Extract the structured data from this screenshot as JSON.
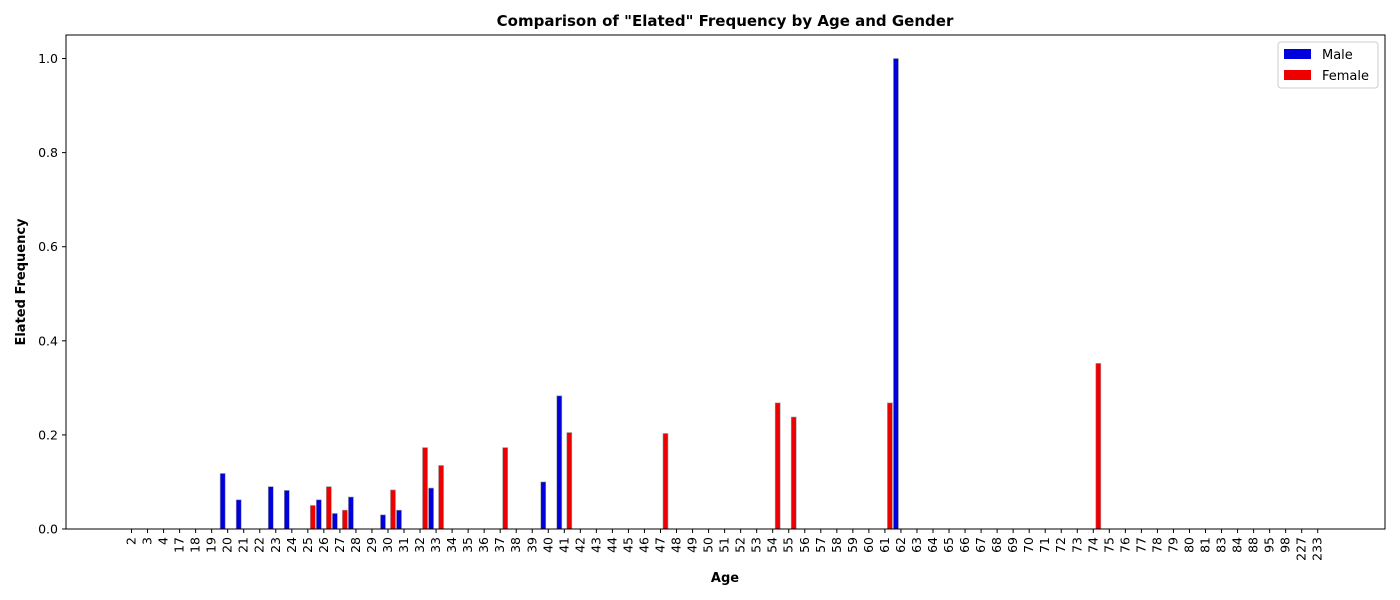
{
  "chart_data": {
    "type": "bar",
    "title": "Comparison of \"Elated\" Frequency by Age and Gender",
    "xlabel": "Age",
    "ylabel": "Elated Frequency",
    "ylim": [
      0,
      1.05
    ],
    "yticks": [
      "0.0",
      "0.2",
      "0.4",
      "0.6",
      "0.8",
      "1.0"
    ],
    "grid": false,
    "legend_position": "top-right",
    "categories": [
      "2",
      "3",
      "4",
      "17",
      "18",
      "19",
      "20",
      "21",
      "22",
      "23",
      "24",
      "25",
      "26",
      "27",
      "28",
      "29",
      "30",
      "31",
      "32",
      "33",
      "34",
      "35",
      "36",
      "37",
      "38",
      "39",
      "40",
      "41",
      "42",
      "43",
      "44",
      "45",
      "46",
      "47",
      "48",
      "49",
      "50",
      "51",
      "52",
      "53",
      "54",
      "55",
      "56",
      "57",
      "58",
      "59",
      "60",
      "61",
      "62",
      "63",
      "64",
      "65",
      "66",
      "67",
      "68",
      "69",
      "70",
      "71",
      "72",
      "73",
      "74",
      "75",
      "76",
      "77",
      "78",
      "79",
      "80",
      "81",
      "83",
      "84",
      "88",
      "95",
      "98",
      "227",
      "233"
    ],
    "series": [
      {
        "name": "Male",
        "color": "#0000dd",
        "values": [
          0,
          0,
          0,
          0,
          0,
          0,
          0.118,
          0.062,
          0,
          0.09,
          0.082,
          0,
          0.062,
          0.033,
          0.068,
          0,
          0.03,
          0.04,
          0,
          0.087,
          0,
          0,
          0,
          0,
          0,
          0,
          0.1,
          0.283,
          0,
          0,
          0,
          0,
          0,
          0,
          0,
          0,
          0,
          0,
          0,
          0,
          0,
          0,
          0,
          0,
          0,
          0,
          0,
          0,
          1.0,
          0,
          0,
          0,
          0,
          0,
          0,
          0,
          0,
          0,
          0,
          0,
          0,
          0,
          0,
          0,
          0,
          0,
          0,
          0,
          0,
          0,
          0,
          0,
          0,
          0,
          0
        ]
      },
      {
        "name": "Female",
        "color": "#ee0000",
        "values": [
          0,
          0,
          0,
          0,
          0,
          0,
          0,
          0,
          0,
          0,
          0,
          0.05,
          0.09,
          0.04,
          0,
          0,
          0.083,
          0,
          0.173,
          0.135,
          0,
          0,
          0,
          0.173,
          0,
          0,
          0,
          0.205,
          0,
          0,
          0,
          0,
          0,
          0.203,
          0,
          0,
          0,
          0,
          0,
          0,
          0.268,
          0.238,
          0,
          0,
          0,
          0,
          0,
          0.268,
          0,
          0,
          0,
          0,
          0,
          0,
          0,
          0,
          0,
          0,
          0,
          0,
          0.352,
          0,
          0,
          0,
          0,
          0,
          0,
          0,
          0,
          0,
          0,
          0,
          0,
          0,
          0
        ]
      }
    ]
  }
}
